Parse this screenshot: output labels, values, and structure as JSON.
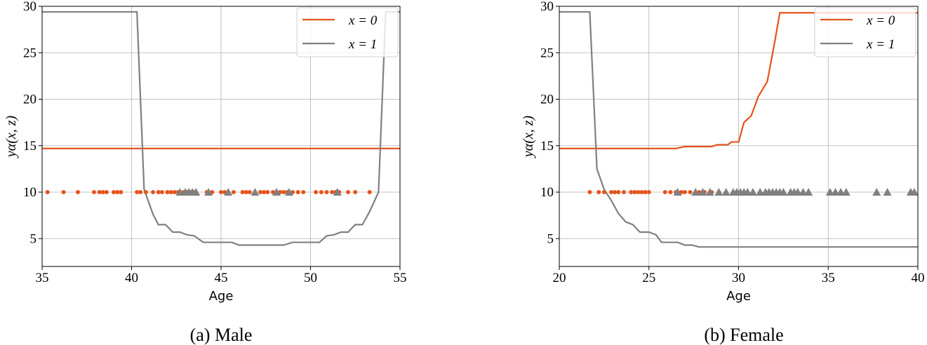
{
  "chart_data": [
    {
      "type": "line",
      "caption": "(a) Male",
      "xlabel": "Age",
      "ylabel": "yα(x, z)",
      "xlim": [
        35,
        55
      ],
      "xticks": [
        35,
        40,
        45,
        50,
        55
      ],
      "ylim": [
        2,
        30
      ],
      "yticks": [
        5,
        10,
        15,
        20,
        25,
        30
      ],
      "grid": true,
      "legend": "upper right",
      "series": [
        {
          "name": "x = 0",
          "color": "#e6531c",
          "x": [
            35,
            55
          ],
          "values": [
            14.7,
            14.7
          ]
        },
        {
          "name": "x = 1",
          "color": "#808080",
          "x": [
            35,
            40.3,
            40.7,
            41.2,
            41.5,
            41.9,
            42.3,
            42.7,
            43.1,
            43.5,
            44.0,
            44.5,
            45.6,
            46.0,
            48.5,
            49.0,
            50.5,
            50.9,
            51.3,
            51.7,
            52.1,
            52.5,
            52.9,
            53.3,
            53.8,
            54.2,
            55
          ],
          "values": [
            29.4,
            29.4,
            10.3,
            7.6,
            6.5,
            6.5,
            5.7,
            5.7,
            5.4,
            5.3,
            4.6,
            4.6,
            4.6,
            4.3,
            4.3,
            4.6,
            4.6,
            5.3,
            5.4,
            5.7,
            5.7,
            6.5,
            6.5,
            7.9,
            10,
            29.4,
            29.4
          ]
        },
        {
          "type": "scatter",
          "marker": "circle",
          "color": "#e6531c",
          "x": [
            35.3,
            36.2,
            37,
            37.9,
            38.2,
            38.4,
            38.6,
            39.0,
            39.2,
            39.4,
            40.3,
            40.5,
            40.8,
            41.2,
            41.5,
            41.7,
            42.0,
            42.2,
            42.4,
            42.6,
            42.9,
            43.1,
            43.3,
            43.5,
            44.2,
            44.5,
            45,
            45.2,
            45.7,
            46.2,
            46.4,
            46.6,
            46.9,
            47.2,
            47.4,
            47.6,
            47.9,
            48.1,
            48.3,
            48.5,
            48.7,
            49,
            49.3,
            49.6,
            50.3,
            50.6,
            50.9,
            51.2,
            51.4,
            51.6,
            52.1,
            52.5,
            53.3
          ],
          "values": [
            10,
            10,
            10,
            10,
            10,
            10,
            10,
            10,
            10,
            10,
            10,
            10,
            10,
            10,
            10,
            10,
            10,
            10,
            10,
            10,
            10,
            10,
            10,
            10,
            10,
            10,
            10,
            10,
            10,
            10,
            10,
            10,
            10,
            10,
            10,
            10,
            10,
            10,
            10,
            10,
            10,
            10,
            10,
            10,
            10,
            10,
            10,
            10,
            10,
            10,
            10,
            10,
            10
          ]
        },
        {
          "type": "scatter",
          "marker": "triangle",
          "color": "#808080",
          "x": [
            42.7,
            43,
            43.2,
            43.4,
            43.6,
            44.3,
            45.4,
            46.9,
            48.1,
            48.8,
            51.5
          ],
          "values": [
            10,
            10,
            10,
            10,
            10,
            10,
            10,
            10,
            10,
            10,
            10
          ]
        }
      ]
    },
    {
      "type": "line",
      "caption": "(b) Female",
      "xlabel": "Age",
      "ylabel": "yα(x, z)",
      "xlim": [
        20,
        40
      ],
      "xticks": [
        20,
        25,
        30,
        35,
        40
      ],
      "ylim": [
        2,
        30
      ],
      "yticks": [
        5,
        10,
        15,
        20,
        25,
        30
      ],
      "grid": true,
      "legend": "upper right",
      "series": [
        {
          "name": "x = 0",
          "color": "#e6531c",
          "x": [
            20,
            26.5,
            27,
            28.5,
            28.8,
            29.4,
            29.6,
            30,
            30.3,
            30.7,
            31.1,
            31.6,
            32,
            32.3,
            40
          ],
          "values": [
            14.7,
            14.7,
            14.9,
            14.9,
            15.1,
            15.1,
            15.4,
            15.4,
            17.5,
            18.2,
            20.3,
            21.9,
            26,
            29.3,
            29.3
          ]
        },
        {
          "name": "x = 1",
          "color": "#808080",
          "x": [
            20,
            21.7,
            22.1,
            22.5,
            22.9,
            23.3,
            23.7,
            24.1,
            24.5,
            25,
            25.4,
            25.7,
            26.6,
            27,
            27.4,
            27.8,
            40
          ],
          "values": [
            29.4,
            29.4,
            12.5,
            10.3,
            9.1,
            7.7,
            6.8,
            6.5,
            5.7,
            5.7,
            5.4,
            4.6,
            4.6,
            4.3,
            4.3,
            4.1,
            4.1
          ]
        },
        {
          "type": "scatter",
          "marker": "circle",
          "color": "#e6531c",
          "x": [
            21.7,
            22.2,
            22.5,
            22.9,
            23.1,
            23.3,
            23.6,
            24.0,
            24.2,
            24.4,
            24.6,
            24.8,
            25.0,
            25.9,
            26.2,
            26.5,
            26.8,
            27.0,
            27.3,
            27.8,
            28.1,
            28.5,
            28.9,
            30.8
          ],
          "values": [
            10,
            10,
            10,
            10,
            10,
            10,
            10,
            10,
            10,
            10,
            10,
            10,
            10,
            10,
            10,
            10,
            10,
            10,
            10,
            10,
            10,
            10,
            10,
            10
          ]
        },
        {
          "type": "scatter",
          "marker": "triangle",
          "color": "#808080",
          "x": [
            26.6,
            27.6,
            28.0,
            28.4,
            28.9,
            29.3,
            29.7,
            29.9,
            30.1,
            30.3,
            30.5,
            30.8,
            31.2,
            31.5,
            31.7,
            31.9,
            32.1,
            32.3,
            32.5,
            32.9,
            33.1,
            33.3,
            33.6,
            33.9,
            35.1,
            35.4,
            35.7,
            36,
            37.7,
            38.3,
            39.6,
            39.8
          ],
          "values": [
            10,
            10,
            10,
            10,
            10,
            10,
            10,
            10,
            10,
            10,
            10,
            10,
            10,
            10,
            10,
            10,
            10,
            10,
            10,
            10,
            10,
            10,
            10,
            10,
            10,
            10,
            10,
            10,
            10,
            10,
            10,
            10
          ]
        }
      ]
    }
  ]
}
